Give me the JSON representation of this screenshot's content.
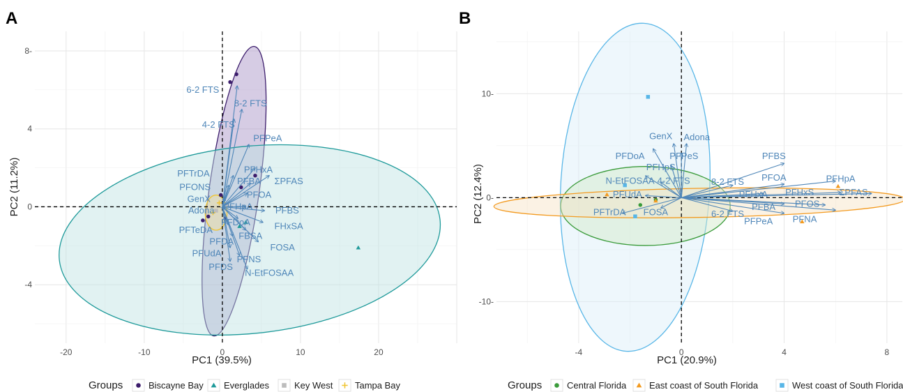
{
  "chart_data": [
    {
      "panel": "A",
      "type": "scatter",
      "xlabel": "PC1 (39.5%)",
      "ylabel": "PC2 (11.2%)",
      "xlim": [
        -24,
        30
      ],
      "ylim": [
        -7,
        9
      ],
      "xticks": [
        -20,
        -10,
        0,
        10,
        20
      ],
      "yticks": [
        -4,
        0,
        4,
        8
      ],
      "xtick_labels": [
        "-20",
        "-10",
        "0",
        "10",
        "20"
      ],
      "ytick_labels": [
        "-4",
        "0",
        "4",
        "8-"
      ],
      "grid": true,
      "legend_title": "Groups",
      "legend_position": "bottom",
      "groups": [
        {
          "name": "Biscayne Bay",
          "color": "#3b1c6b",
          "marker": "circle"
        },
        {
          "name": "Everglades",
          "color": "#1e9a9a",
          "marker": "triangle"
        },
        {
          "name": "Key West",
          "color": "#bdbdbd",
          "marker": "square"
        },
        {
          "name": "Tampa Bay",
          "color": "#f0c430",
          "marker": "plus"
        }
      ],
      "ellipses": [
        {
          "group": "Biscayne Bay",
          "cx": 1.5,
          "cy": 0.8,
          "rx": 3.2,
          "ry": 7.5,
          "angle": 8,
          "color": "#3b1c6b",
          "fill": "#a48fc4"
        },
        {
          "group": "Everglades",
          "cx": 3.5,
          "cy": -1.7,
          "rx": 24.5,
          "ry": 4.8,
          "angle": -6,
          "color": "#1e9a9a",
          "fill": "#bde3e2"
        },
        {
          "group": "Tampa Bay",
          "cx": -0.8,
          "cy": -0.3,
          "rx": 1.4,
          "ry": 0.9,
          "angle": 0,
          "color": "#f0c430",
          "fill": "#f5e09a"
        }
      ],
      "points": [
        {
          "group": "Biscayne Bay",
          "x": 1.0,
          "y": 6.4
        },
        {
          "group": "Biscayne Bay",
          "x": 1.8,
          "y": 6.8
        },
        {
          "group": "Biscayne Bay",
          "x": -0.2,
          "y": 0.6
        },
        {
          "group": "Biscayne Bay",
          "x": 4.2,
          "y": 1.6
        },
        {
          "group": "Biscayne Bay",
          "x": 2.4,
          "y": 1.0
        },
        {
          "group": "Biscayne Bay",
          "x": -2.5,
          "y": -0.7
        },
        {
          "group": "Biscayne Bay",
          "x": -1.8,
          "y": -0.5
        },
        {
          "group": "Biscayne Bay",
          "x": 0.4,
          "y": -0.6
        },
        {
          "group": "Everglades",
          "x": 17.4,
          "y": -2.1
        },
        {
          "group": "Everglades",
          "x": 3.0,
          "y": -0.8
        },
        {
          "group": "Everglades",
          "x": 2.2,
          "y": -1.0
        },
        {
          "group": "Key West",
          "x": -0.8,
          "y": -0.2
        },
        {
          "group": "Key West",
          "x": 0.6,
          "y": 0.1
        },
        {
          "group": "Tampa Bay",
          "x": -1.2,
          "y": -0.3
        },
        {
          "group": "Tampa Bay",
          "x": -0.4,
          "y": 0.2
        }
      ],
      "loadings": [
        {
          "label": "6-2 FTS",
          "x": 1.9,
          "y": 6.2,
          "lx": -2.5,
          "ly": 6.0
        },
        {
          "label": "8-2 FTS",
          "x": 2.5,
          "y": 5.0,
          "lx": 3.6,
          "ly": 5.3
        },
        {
          "label": "4-2 FTS",
          "x": 1.5,
          "y": 4.5,
          "lx": -0.5,
          "ly": 4.2
        },
        {
          "label": "PFPeA",
          "x": 3.4,
          "y": 3.2,
          "lx": 5.8,
          "ly": 3.5
        },
        {
          "label": "PFHxA",
          "x": 4.2,
          "y": 2.0,
          "lx": 4.6,
          "ly": 1.9
        },
        {
          "label": "PFTrDA",
          "x": 1.4,
          "y": 1.6,
          "lx": -3.7,
          "ly": 1.7
        },
        {
          "label": "PFBA",
          "x": 3.6,
          "y": 1.2,
          "lx": 3.4,
          "ly": 1.3
        },
        {
          "label": "ΣPFAS",
          "x": 6.0,
          "y": 1.6,
          "lx": 8.5,
          "ly": 1.3
        },
        {
          "label": "PFONS",
          "x": 0.8,
          "y": 1.1,
          "lx": -3.5,
          "ly": 1.0
        },
        {
          "label": "PFOA",
          "x": 3.2,
          "y": 0.7,
          "lx": 4.7,
          "ly": 0.6
        },
        {
          "label": "GenX",
          "x": 0.3,
          "y": 0.5,
          "lx": -3.0,
          "ly": 0.4
        },
        {
          "label": "PFHpA",
          "x": 3.0,
          "y": 0.0,
          "lx": 2.0,
          "ly": 0.0
        },
        {
          "label": "Adona",
          "x": 0.2,
          "y": -0.1,
          "lx": -2.7,
          "ly": -0.2
        },
        {
          "label": "PFBS",
          "x": 5.4,
          "y": -0.2,
          "lx": 8.3,
          "ly": -0.2
        },
        {
          "label": "PFDoA",
          "x": 2.0,
          "y": -0.6,
          "lx": 1.7,
          "ly": -0.8
        },
        {
          "label": "PFTeDA",
          "x": 0.7,
          "y": -0.9,
          "lx": -3.4,
          "ly": -1.2
        },
        {
          "label": "FHxSA",
          "x": 5.2,
          "y": -0.8,
          "lx": 8.5,
          "ly": -1.0
        },
        {
          "label": "FBSA",
          "x": 3.0,
          "y": -1.2,
          "lx": 3.6,
          "ly": -1.5
        },
        {
          "label": "PFDA",
          "x": 1.3,
          "y": -1.5,
          "lx": -0.1,
          "ly": -1.8
        },
        {
          "label": "FOSA",
          "x": 4.6,
          "y": -1.8,
          "lx": 7.7,
          "ly": -2.1
        },
        {
          "label": "PFUdA",
          "x": 1.0,
          "y": -2.1,
          "lx": -2.0,
          "ly": -2.4
        },
        {
          "label": "PFNS",
          "x": 2.2,
          "y": -2.5,
          "lx": 3.4,
          "ly": -2.7
        },
        {
          "label": "PFDS",
          "x": 1.0,
          "y": -2.8,
          "lx": -0.2,
          "ly": -3.1
        },
        {
          "label": "N-EtFOSAA",
          "x": 3.2,
          "y": -3.2,
          "lx": 6.0,
          "ly": -3.4
        }
      ]
    },
    {
      "panel": "B",
      "type": "scatter",
      "xlabel": "PC1 (20.9%)",
      "ylabel": "PC2 (12.4%)",
      "xlim": [
        -7.2,
        8.6
      ],
      "ylim": [
        -14,
        16
      ],
      "xticks": [
        -4,
        0,
        4,
        8
      ],
      "yticks": [
        -10,
        0,
        10
      ],
      "xtick_labels": [
        "-4",
        "0",
        "4",
        "8"
      ],
      "ytick_labels": [
        "-10-",
        "0-",
        "10-"
      ],
      "grid": true,
      "legend_title": "Groups",
      "legend_position": "bottom",
      "groups": [
        {
          "name": "Central Florida",
          "color": "#3a9b3a",
          "marker": "circle"
        },
        {
          "name": "East coast of South Florida",
          "color": "#f39a1f",
          "marker": "triangle"
        },
        {
          "name": "West coast of South Florida",
          "color": "#58b6e7",
          "marker": "square"
        }
      ],
      "ellipses": [
        {
          "group": "West coast of South Florida",
          "cx": -1.8,
          "cy": 1.0,
          "rx": 2.9,
          "ry": 15.8,
          "angle": 3,
          "color": "#58b6e7",
          "fill": "#d9eef9"
        },
        {
          "group": "Central Florida",
          "cx": -1.4,
          "cy": -0.8,
          "rx": 3.3,
          "ry": 3.8,
          "angle": 0,
          "color": "#3a9b3a",
          "fill": "#d0e8c8"
        },
        {
          "group": "East coast of South Florida",
          "cx": 0.7,
          "cy": -0.5,
          "rx": 8.0,
          "ry": 1.4,
          "angle": -1,
          "color": "#f39a1f",
          "fill": "#f7e3c4"
        }
      ],
      "points": [
        {
          "group": "West coast of South Florida",
          "x": -1.3,
          "y": 9.7
        },
        {
          "group": "West coast of South Florida",
          "x": -1.8,
          "y": -1.8
        },
        {
          "group": "West coast of South Florida",
          "x": -2.2,
          "y": 1.2
        },
        {
          "group": "Central Florida",
          "x": -1.6,
          "y": -0.7
        },
        {
          "group": "Central Florida",
          "x": -1.0,
          "y": -0.2
        },
        {
          "group": "East coast of South Florida",
          "x": 4.7,
          "y": -2.3
        },
        {
          "group": "East coast of South Florida",
          "x": 6.1,
          "y": 1.1
        },
        {
          "group": "East coast of South Florida",
          "x": -2.9,
          "y": 0.3
        },
        {
          "group": "East coast of South Florida",
          "x": -1.0,
          "y": -0.3
        },
        {
          "group": "East coast of South Florida",
          "x": 0.5,
          "y": 0.0
        }
      ],
      "loadings": [
        {
          "label": "GenX",
          "x": -0.3,
          "y": 5.2,
          "lx": -0.8,
          "ly": 5.9
        },
        {
          "label": "Adona",
          "x": 0.2,
          "y": 5.2,
          "lx": 0.6,
          "ly": 5.8
        },
        {
          "label": "PFDoA",
          "x": -1.1,
          "y": 4.7,
          "lx": -2.0,
          "ly": 4.0
        },
        {
          "label": "PFPeS",
          "x": 0.0,
          "y": 4.3,
          "lx": 0.1,
          "ly": 4.0
        },
        {
          "label": "PFHpS",
          "x": -0.4,
          "y": 3.1,
          "lx": -0.8,
          "ly": 2.9
        },
        {
          "label": "PFBS",
          "x": 4.0,
          "y": 3.3,
          "lx": 3.6,
          "ly": 4.0
        },
        {
          "label": "PFHpA",
          "x": 6.0,
          "y": 1.6,
          "lx": 6.2,
          "ly": 1.8
        },
        {
          "label": "PFOA",
          "x": 4.0,
          "y": 1.3,
          "lx": 3.6,
          "ly": 1.9
        },
        {
          "label": "N-EtFOSAA",
          "x": -1.4,
          "y": 2.1,
          "lx": -2.0,
          "ly": 1.6
        },
        {
          "label": "4-2 FTS",
          "x": -0.8,
          "y": 1.5,
          "lx": -0.3,
          "ly": 1.6
        },
        {
          "label": "8-2 FTS",
          "x": 2.0,
          "y": 1.2,
          "lx": 1.8,
          "ly": 1.5
        },
        {
          "label": "PFHxS",
          "x": 6.2,
          "y": 0.5,
          "lx": 4.6,
          "ly": 0.5
        },
        {
          "label": "ΣPFAS",
          "x": 7.4,
          "y": 0.4,
          "lx": 6.7,
          "ly": 0.5
        },
        {
          "label": "PFHxA",
          "x": 3.2,
          "y": 0.4,
          "lx": 2.8,
          "ly": 0.3
        },
        {
          "label": "PFUdA",
          "x": -1.4,
          "y": 0.2,
          "lx": -2.1,
          "ly": 0.3
        },
        {
          "label": "PFBA",
          "x": 4.0,
          "y": -0.6,
          "lx": 3.2,
          "ly": -0.9
        },
        {
          "label": "PFOS",
          "x": 5.6,
          "y": -0.7,
          "lx": 4.9,
          "ly": -0.6
        },
        {
          "label": "PFTrDA",
          "x": -2.3,
          "y": -1.5,
          "lx": -2.8,
          "ly": -1.4
        },
        {
          "label": "FOSA",
          "x": -0.8,
          "y": -1.0,
          "lx": -1.0,
          "ly": -1.4
        },
        {
          "label": "6-2 FTS",
          "x": 2.0,
          "y": -1.3,
          "lx": 1.8,
          "ly": -1.6
        },
        {
          "label": "PFPeA",
          "x": 4.0,
          "y": -1.5,
          "lx": 3.0,
          "ly": -2.3
        },
        {
          "label": "PFNA",
          "x": 6.0,
          "y": -1.2,
          "lx": 4.8,
          "ly": -2.1
        }
      ]
    }
  ]
}
